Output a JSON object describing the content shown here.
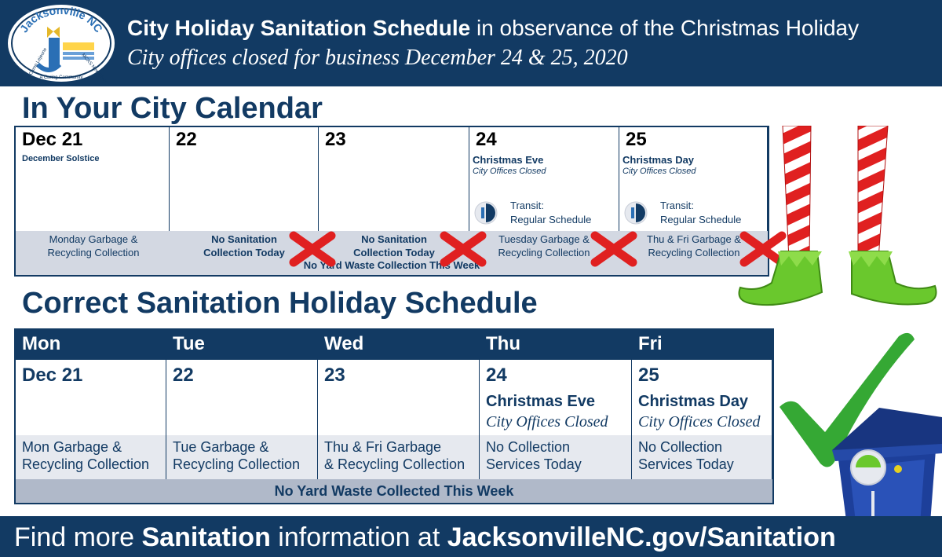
{
  "header": {
    "logo_text_top": "Jacksonville NC",
    "logo_text_left": "Camp Lejeune",
    "logo_text_right": "MCAS New River",
    "logo_text_bottom": "A Caring Community",
    "title_bold": "City Holiday Sanitation Schedule",
    "title_rest": " in observance of the Christmas Holiday",
    "subtitle": "City offices closed for business December 24 & 25, 2020"
  },
  "calendar": {
    "title": "In Your City Calendar",
    "days": [
      {
        "num": "Dec 21",
        "sub": "December Solstice"
      },
      {
        "num": "22"
      },
      {
        "num": "23"
      },
      {
        "num": "24",
        "holiday": "Christmas Eve",
        "note": "City Offices Closed",
        "transit_label": "Transit:",
        "transit_value": "Regular Schedule"
      },
      {
        "num": "25",
        "holiday": "Christmas Day",
        "note": "City Offices Closed",
        "transit_label": "Transit:",
        "transit_value": "Regular Schedule"
      }
    ],
    "strip": [
      {
        "line1": "Monday Garbage &",
        "line2": "Recycling Collection"
      },
      {
        "line1": "No Sanitation",
        "line2": "Collection Today"
      },
      {
        "line1": "No Sanitation",
        "line2": "Collection Today"
      },
      {
        "line1": "Tuesday Garbage &",
        "line2": "Recycling Collection"
      },
      {
        "line1": "Thu & Fri Garbage &",
        "line2": "Recycling Collection"
      }
    ],
    "strip_bottom": "No Yard Waste Collection This Week"
  },
  "schedule": {
    "title": "Correct Sanitation Holiday Schedule",
    "columns": [
      {
        "day": "Mon",
        "num": "Dec 21",
        "svc1": "Mon Garbage &",
        "svc2": "Recycling Collection"
      },
      {
        "day": "Tue",
        "num": "22",
        "svc1": "Tue Garbage &",
        "svc2": "Recycling Collection"
      },
      {
        "day": "Wed",
        "num": "23",
        "svc1": "Thu & Fri Garbage",
        "svc2": "& Recycling Collection"
      },
      {
        "day": "Thu",
        "num": "24",
        "holiday": "Christmas Eve",
        "note": "City Offices Closed",
        "svc1": "No Collection",
        "svc2": "Services Today"
      },
      {
        "day": "Fri",
        "num": "25",
        "holiday": "Christmas Day",
        "note": "City Offices Closed",
        "svc1": "No Collection",
        "svc2": "Services Today"
      }
    ],
    "footer": "No Yard Waste Collected This Week"
  },
  "footer": {
    "prefix": "Find more ",
    "bold1": "Sanitation",
    "middle": " information at ",
    "bold2": "JacksonvilleNC.gov/Sanitation"
  },
  "colors": {
    "navy": "#123a63",
    "strip_gray": "#d3d8e2",
    "x_red": "#e02020",
    "check_green": "#35a834",
    "cart_blue": "#1d3f9a"
  }
}
